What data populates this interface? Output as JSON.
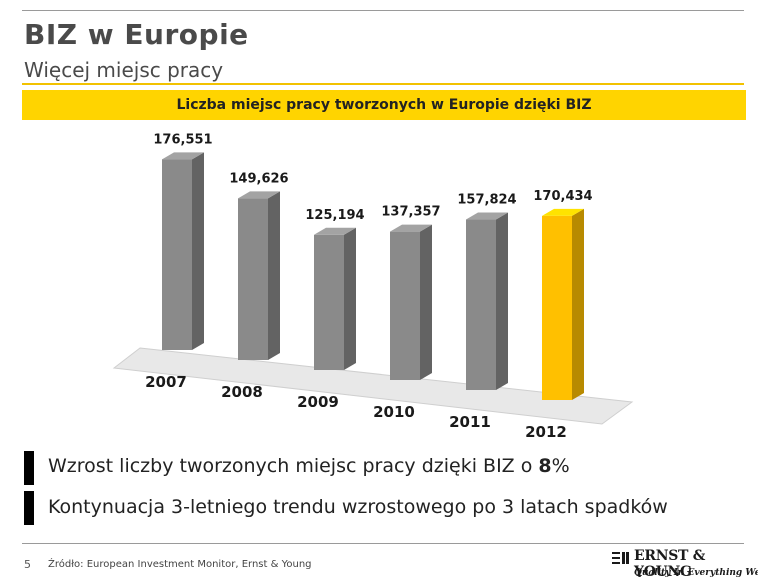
{
  "header": {
    "title": "BIZ w Europie",
    "subtitle": "Więcej miejsc pracy"
  },
  "banner": "Liczba miejsc pracy tworzonych w Europie dzięki BIZ",
  "chart_data": {
    "type": "bar",
    "categories": [
      "2007",
      "2008",
      "2009",
      "2010",
      "2011",
      "2012"
    ],
    "values": [
      176551,
      149626,
      125194,
      137357,
      157824,
      170434
    ],
    "data_labels": [
      "176,551",
      "149,626",
      "125,194",
      "137,357",
      "157,824",
      "170,434"
    ],
    "title": "Liczba miejsc pracy tworzonych w Europie dzięki BIZ",
    "xlabel": "",
    "ylabel": "",
    "grid": false,
    "highlight_index": 5,
    "colors": {
      "bar": "#8a8a8a",
      "highlight": "#ffc000",
      "floor": "#e8e8e8"
    }
  },
  "bullets": [
    {
      "text_before": "Wzrost liczby tworzonych miejsc pracy dzięki BIZ o ",
      "emphasis": "8",
      "text_after": "%"
    },
    {
      "text": "Kontynuacja 3-letniego trendu wzrostowego po 3 latach spadków"
    }
  ],
  "footer": {
    "page_number": "5",
    "source": "Źródło: European Investment Monitor, Ernst & Young",
    "logo_name": "ERNST & YOUNG",
    "logo_tagline": "Quality In Everything We Do"
  }
}
